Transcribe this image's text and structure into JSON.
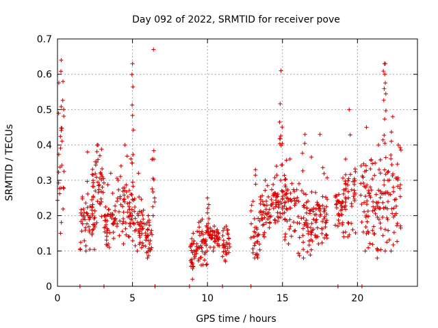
{
  "chart_data": {
    "type": "scatter",
    "title": "Day 092 of 2022, SRMTID for receiver pove",
    "xlabel": "GPS time / hours",
    "ylabel": "SRMTID / TECUs",
    "xlim": [
      0,
      24
    ],
    "ylim": [
      0,
      0.7
    ],
    "x_ticks": [
      0,
      5,
      10,
      15,
      20
    ],
    "x_tick_labels": [
      "0",
      "5",
      "10",
      "15",
      "20"
    ],
    "y_ticks": [
      0,
      0.1,
      0.2,
      0.3,
      0.4,
      0.5,
      0.6,
      0.7
    ],
    "y_tick_labels": [
      "0",
      "0.1",
      "0.2",
      "0.3",
      "0.4",
      "0.5",
      "0.6",
      "0.7"
    ],
    "grid": true,
    "marker": "+",
    "color": "#dd0000",
    "series": [
      {
        "name": "SRMTID",
        "clusters": [
          {
            "x_start": 0.0,
            "x_end": 0.5,
            "low": 0.15,
            "mid": 0.4,
            "high": 0.64
          },
          {
            "x_start": 1.5,
            "x_end": 2.5,
            "low": 0.1,
            "mid": 0.2,
            "high": 0.38
          },
          {
            "x_start": 2.3,
            "x_end": 3.1,
            "low": 0.18,
            "mid": 0.3,
            "high": 0.4
          },
          {
            "x_start": 3.1,
            "x_end": 4.0,
            "low": 0.11,
            "mid": 0.19,
            "high": 0.32
          },
          {
            "x_start": 4.0,
            "x_end": 5.0,
            "low": 0.12,
            "mid": 0.22,
            "high": 0.4
          },
          {
            "x_start": 4.9,
            "x_end": 5.1,
            "low": 0.2,
            "mid": 0.45,
            "high": 0.63
          },
          {
            "x_start": 5.0,
            "x_end": 5.8,
            "low": 0.1,
            "mid": 0.18,
            "high": 0.32
          },
          {
            "x_start": 5.8,
            "x_end": 6.3,
            "low": 0.08,
            "mid": 0.13,
            "high": 0.2
          },
          {
            "x_start": 6.3,
            "x_end": 6.5,
            "low": 0.2,
            "mid": 0.3,
            "high": 0.67
          },
          {
            "x_start": 8.8,
            "x_end": 9.3,
            "low": 0.02,
            "mid": 0.09,
            "high": 0.15
          },
          {
            "x_start": 9.3,
            "x_end": 10.0,
            "low": 0.06,
            "mid": 0.12,
            "high": 0.19
          },
          {
            "x_start": 9.9,
            "x_end": 10.1,
            "low": 0.1,
            "mid": 0.18,
            "high": 0.25
          },
          {
            "x_start": 10.1,
            "x_end": 10.8,
            "low": 0.1,
            "mid": 0.14,
            "high": 0.17
          },
          {
            "x_start": 11.0,
            "x_end": 11.5,
            "low": 0.07,
            "mid": 0.12,
            "high": 0.17
          },
          {
            "x_start": 12.9,
            "x_end": 13.5,
            "low": 0.08,
            "mid": 0.15,
            "high": 0.33
          },
          {
            "x_start": 13.5,
            "x_end": 14.2,
            "low": 0.14,
            "mid": 0.21,
            "high": 0.3
          },
          {
            "x_start": 14.2,
            "x_end": 15.0,
            "low": 0.18,
            "mid": 0.24,
            "high": 0.34
          },
          {
            "x_start": 14.8,
            "x_end": 15.0,
            "low": 0.3,
            "mid": 0.45,
            "high": 0.61
          },
          {
            "x_start": 15.0,
            "x_end": 16.0,
            "low": 0.12,
            "mid": 0.23,
            "high": 0.36
          },
          {
            "x_start": 16.0,
            "x_end": 17.0,
            "low": 0.08,
            "mid": 0.18,
            "high": 0.43
          },
          {
            "x_start": 17.0,
            "x_end": 18.0,
            "low": 0.12,
            "mid": 0.2,
            "high": 0.43
          },
          {
            "x_start": 18.5,
            "x_end": 19.0,
            "low": 0.17,
            "mid": 0.22,
            "high": 0.26
          },
          {
            "x_start": 19.0,
            "x_end": 19.9,
            "low": 0.14,
            "mid": 0.26,
            "high": 0.5
          },
          {
            "x_start": 20.2,
            "x_end": 21.0,
            "low": 0.1,
            "mid": 0.25,
            "high": 0.45
          },
          {
            "x_start": 21.0,
            "x_end": 21.8,
            "low": 0.08,
            "mid": 0.22,
            "high": 0.4
          },
          {
            "x_start": 21.7,
            "x_end": 21.9,
            "low": 0.3,
            "mid": 0.5,
            "high": 0.63
          },
          {
            "x_start": 21.8,
            "x_end": 22.9,
            "low": 0.1,
            "mid": 0.25,
            "high": 0.48
          }
        ],
        "zero_points_x": [
          1.5,
          3.1,
          6.5,
          8.8,
          11.0,
          12.9,
          18.7,
          20.3
        ]
      }
    ]
  }
}
